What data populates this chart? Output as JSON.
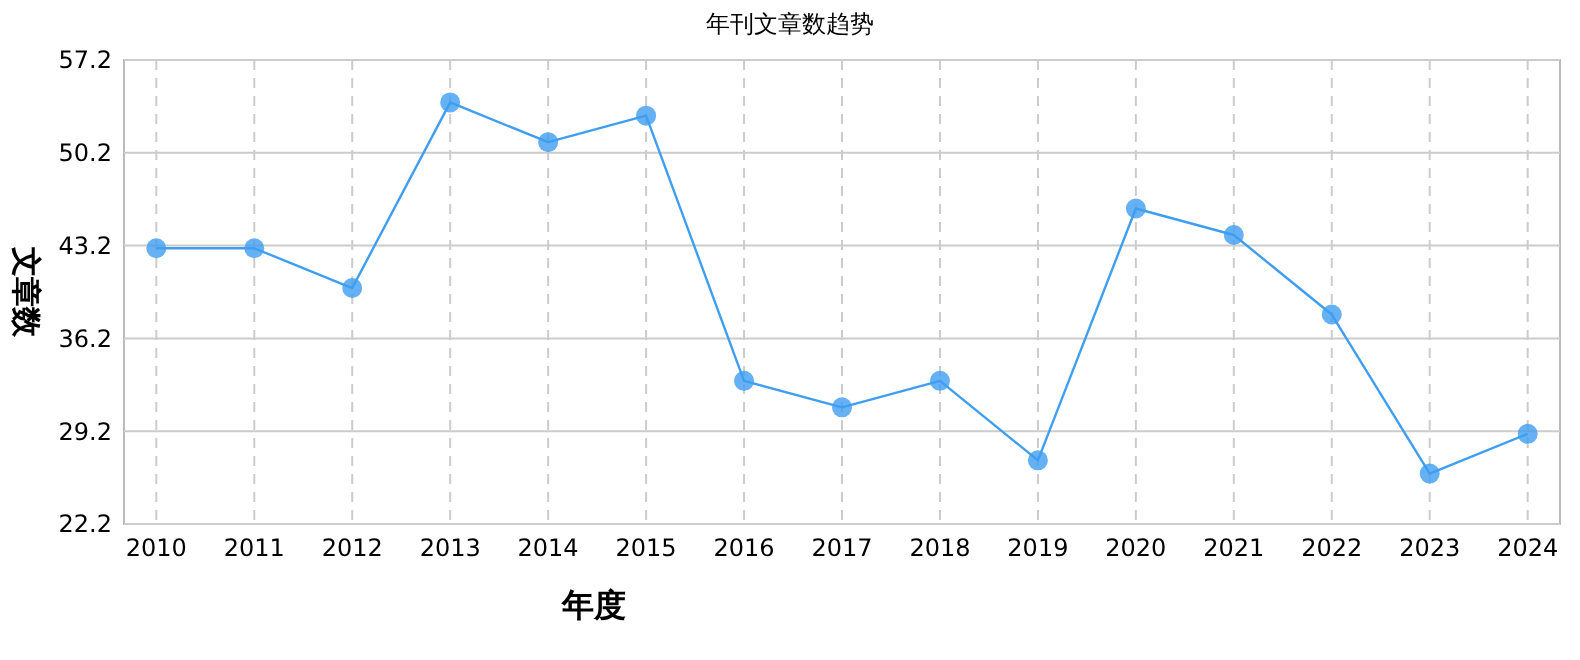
{
  "chart_data": {
    "type": "line",
    "title": "年刊文章数趋势",
    "xlabel": "年度",
    "ylabel": "文章数",
    "categories": [
      "2010",
      "2011",
      "2012",
      "2013",
      "2014",
      "2015",
      "2016",
      "2017",
      "2018",
      "2019",
      "2020",
      "2021",
      "2022",
      "2023",
      "2024"
    ],
    "series": [
      {
        "color": "#3f9ef0",
        "values": [
          43,
          43,
          40,
          54,
          51,
          53,
          33,
          31,
          33,
          27,
          46,
          44,
          38,
          26,
          29
        ]
      }
    ],
    "ylim": [
      22.2,
      57.2
    ],
    "yticks": [
      22.2,
      29.2,
      36.2,
      43.2,
      50.2,
      57.2
    ],
    "grid": true,
    "marker": "circle",
    "line_style": "solid"
  }
}
